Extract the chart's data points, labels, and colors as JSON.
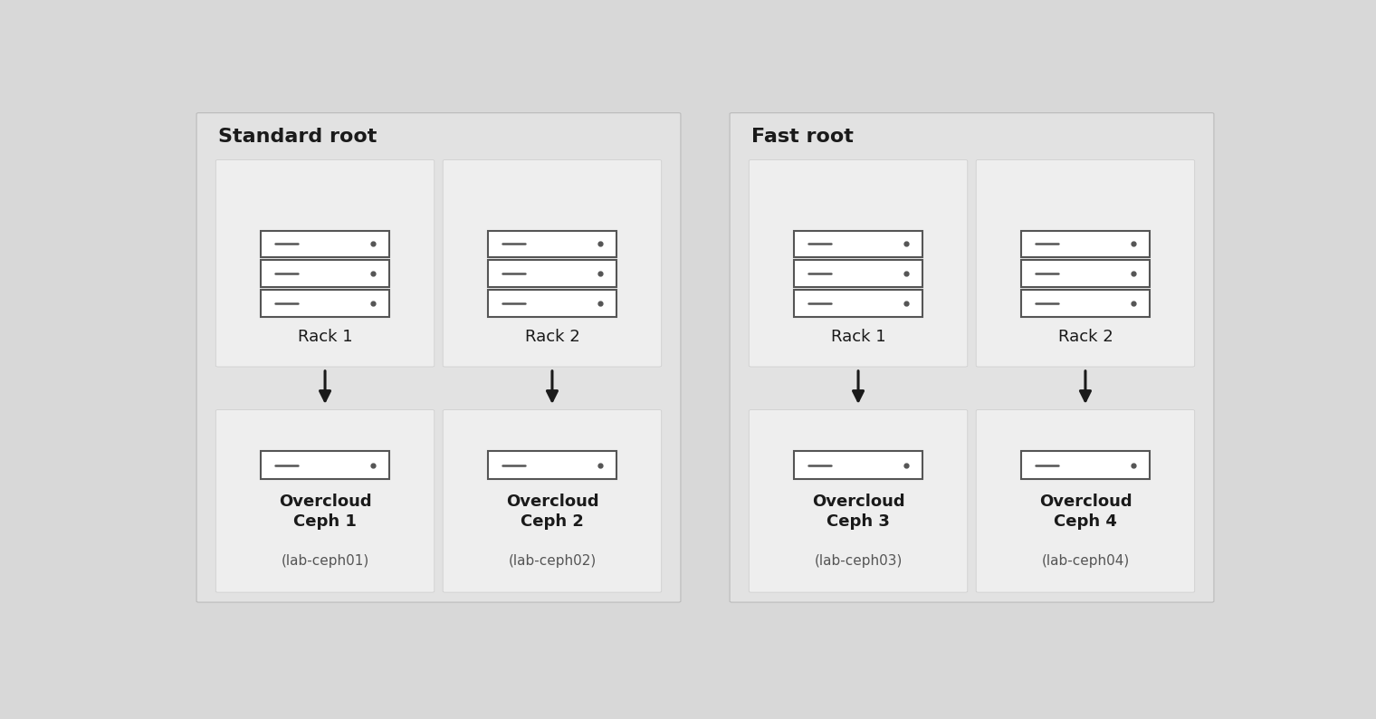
{
  "bg_color": "#d8d8d8",
  "outer_panel_bg": "#e2e2e2",
  "inner_box_bg": "#eeeeee",
  "server_fill": "#ffffff",
  "server_edge": "#555555",
  "arrow_color": "#1a1a1a",
  "title_color": "#1a1a1a",
  "label_color": "#1a1a1a",
  "sublabel_color": "#555555",
  "title_fontsize": 16,
  "label_fontsize": 13,
  "sublabel_fontsize": 11,
  "panels": [
    {
      "title": "Standard root",
      "racks": [
        "Rack 1",
        "Rack 2"
      ],
      "nodes": [
        {
          "label": "Overcloud\nCeph 1",
          "sublabel": "(lab-ceph01)"
        },
        {
          "label": "Overcloud\nCeph 2",
          "sublabel": "(lab-ceph02)"
        }
      ]
    },
    {
      "title": "Fast root",
      "racks": [
        "Rack 1",
        "Rack 2"
      ],
      "nodes": [
        {
          "label": "Overcloud\nCeph 3",
          "sublabel": "(lab-ceph03)"
        },
        {
          "label": "Overcloud\nCeph 4",
          "sublabel": "(lab-ceph04)"
        }
      ]
    }
  ]
}
